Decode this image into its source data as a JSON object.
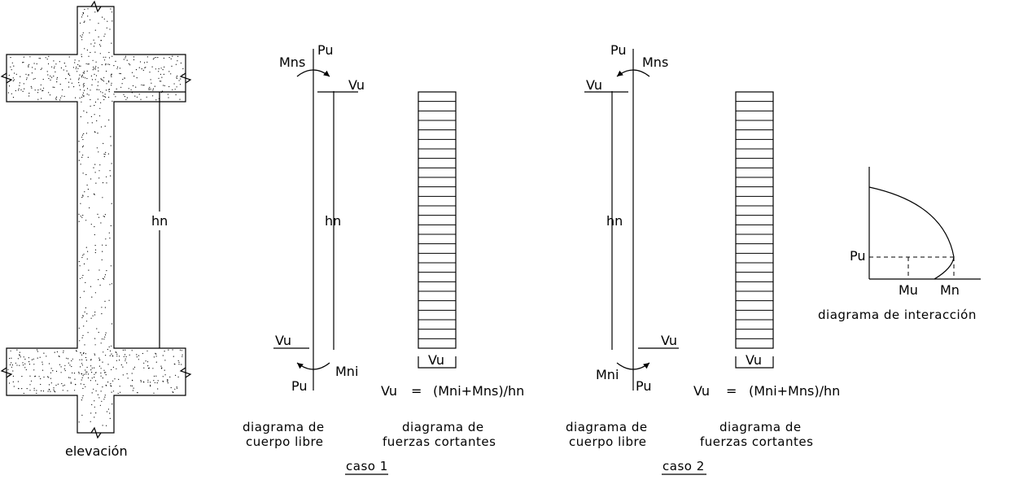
{
  "elevation": {
    "label": "elevación",
    "height_label": "hn"
  },
  "case1": {
    "pu_top": "Pu",
    "mns": "Mns",
    "vu_top": "Vu",
    "height_label": "hn",
    "vu_bottom": "Vu",
    "mni": "Mni",
    "pu_bottom": "Pu",
    "shear_label": "Vu",
    "formula_lhs": "Vu",
    "formula_eq": "=",
    "formula_rhs": "(Mni+Mns)/hn",
    "fbd_caption_1": "diagrama de",
    "fbd_caption_2": "cuerpo libre",
    "shear_caption_1": "diagrama de",
    "shear_caption_2": "fuerzas cortantes",
    "title": "caso 1"
  },
  "case2": {
    "pu_top": "Pu",
    "mns": "Mns",
    "vu_top": "Vu",
    "height_label": "hn",
    "vu_bottom": "Vu",
    "mni": "Mni",
    "pu_bottom": "Pu",
    "shear_label": "Vu",
    "formula_lhs": "Vu",
    "formula_eq": "=",
    "formula_rhs": "(Mni+Mns)/hn",
    "fbd_caption_1": "diagrama de",
    "fbd_caption_2": "cuerpo libre",
    "shear_caption_1": "diagrama de",
    "shear_caption_2": "fuerzas cortantes",
    "title": "caso 2"
  },
  "interaction": {
    "pu": "Pu",
    "mu": "Mu",
    "mn": "Mn",
    "caption": "diagrama de interacción"
  },
  "shear_hatch_rows": 27,
  "stipple_dots": 900
}
